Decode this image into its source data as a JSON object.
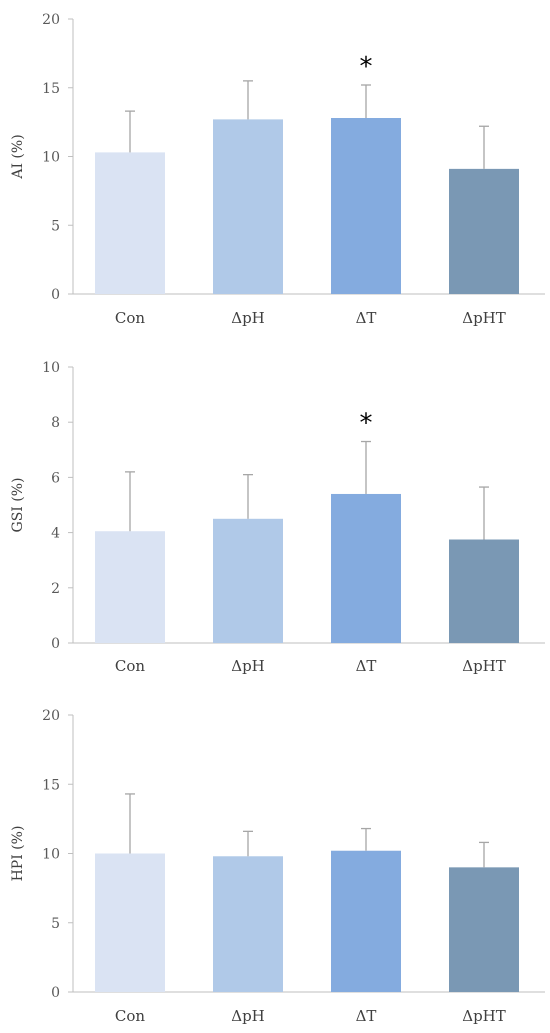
{
  "chart_data": [
    {
      "type": "bar",
      "ylabel": "AI (%)",
      "ylim": [
        0,
        20
      ],
      "yticks": [
        0,
        5,
        10,
        15,
        20
      ],
      "categories": [
        "Con",
        "ΔpH",
        "ΔT",
        "ΔpHT"
      ],
      "values": [
        10.3,
        12.7,
        12.8,
        9.1
      ],
      "errors": [
        3.0,
        2.8,
        2.4,
        3.1
      ],
      "significance": [
        "",
        "",
        "*",
        ""
      ],
      "colors": [
        "#dae3f3",
        "#b0c9e8",
        "#84abdf",
        "#7a98b4"
      ],
      "grid": false,
      "legend": "none"
    },
    {
      "type": "bar",
      "ylabel": "GSI (%)",
      "ylim": [
        0,
        10
      ],
      "yticks": [
        0,
        2,
        4,
        6,
        8,
        10
      ],
      "categories": [
        "Con",
        "ΔpH",
        "ΔT",
        "ΔpHT"
      ],
      "values": [
        4.05,
        4.5,
        5.4,
        3.75
      ],
      "errors": [
        2.15,
        1.6,
        1.9,
        1.9
      ],
      "significance": [
        "",
        "",
        "*",
        ""
      ],
      "colors": [
        "#dae3f3",
        "#b0c9e8",
        "#84abdf",
        "#7a98b4"
      ],
      "grid": false,
      "legend": "none"
    },
    {
      "type": "bar",
      "ylabel": "HPI (%)",
      "ylim": [
        0,
        20
      ],
      "yticks": [
        0,
        5,
        10,
        15,
        20
      ],
      "categories": [
        "Con",
        "ΔpH",
        "ΔT",
        "ΔpHT"
      ],
      "values": [
        10.0,
        9.8,
        10.2,
        9.0
      ],
      "errors": [
        4.3,
        1.8,
        1.6,
        1.8
      ],
      "significance": [
        "",
        "",
        "",
        ""
      ],
      "colors": [
        "#dae3f3",
        "#b0c9e8",
        "#84abdf",
        "#7a98b4"
      ],
      "grid": false,
      "legend": "none"
    }
  ]
}
